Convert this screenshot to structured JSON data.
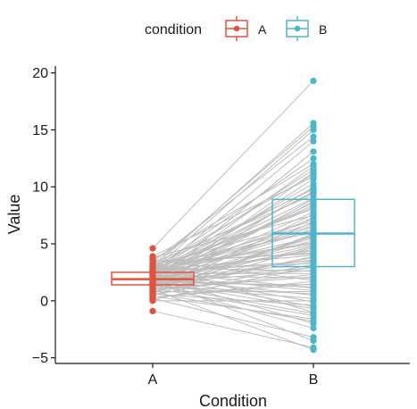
{
  "chart_data": {
    "type": "box",
    "xlabel": "Condition",
    "ylabel": "Value",
    "categories": [
      "A",
      "B"
    ],
    "ylim": [
      -5.5,
      20.6
    ],
    "yticks": [
      -5,
      0,
      5,
      10,
      15,
      20
    ],
    "ytick_labels": [
      "−5",
      "0",
      "5",
      "10",
      "15",
      "20"
    ],
    "legend": {
      "title": "condition",
      "position": "top",
      "items": [
        {
          "label": "A",
          "color": "#E0533F"
        },
        {
          "label": "B",
          "color": "#4FB6C8"
        }
      ]
    },
    "boxes": [
      {
        "group": "A",
        "q1": 1.4,
        "median": 1.9,
        "q3": 2.5,
        "min": 1.4,
        "max": 2.5,
        "color": "#E0533F"
      },
      {
        "group": "B",
        "q1": 3.0,
        "median": 5.9,
        "q3": 8.9,
        "min": 3.0,
        "max": 8.9,
        "color": "#4FB6C8"
      }
    ],
    "paired_points": [
      [
        4.6,
        19.3
      ],
      [
        2.9,
        15.6
      ],
      [
        3.1,
        15.3
      ],
      [
        2.7,
        15.0
      ],
      [
        3.4,
        14.4
      ],
      [
        3.6,
        12.0
      ],
      [
        2.5,
        11.5
      ],
      [
        2.9,
        11.1
      ],
      [
        1.6,
        10.7
      ],
      [
        2.2,
        10.3
      ],
      [
        2.6,
        9.9
      ],
      [
        1.9,
        9.6
      ],
      [
        3.3,
        9.3
      ],
      [
        2.2,
        9.0
      ],
      [
        1.3,
        8.7
      ],
      [
        2.0,
        8.4
      ],
      [
        2.7,
        8.1
      ],
      [
        1.5,
        7.8
      ],
      [
        3.8,
        7.5
      ],
      [
        2.1,
        7.2
      ],
      [
        1.1,
        6.9
      ],
      [
        2.4,
        6.6
      ],
      [
        1.7,
        6.3
      ],
      [
        3.0,
        6.0
      ],
      [
        0.9,
        5.8
      ],
      [
        2.3,
        5.6
      ],
      [
        1.4,
        5.3
      ],
      [
        2.8,
        5.0
      ],
      [
        0.7,
        4.7
      ],
      [
        1.9,
        4.4
      ],
      [
        3.5,
        4.1
      ],
      [
        1.2,
        3.8
      ],
      [
        2.5,
        3.5
      ],
      [
        0.5,
        3.2
      ],
      [
        1.8,
        2.9
      ],
      [
        2.9,
        2.6
      ],
      [
        1.0,
        2.3
      ],
      [
        2.2,
        2.0
      ],
      [
        0.3,
        1.7
      ],
      [
        1.6,
        1.4
      ],
      [
        2.6,
        1.1
      ],
      [
        0.8,
        0.8
      ],
      [
        2.0,
        0.5
      ],
      [
        1.3,
        0.2
      ],
      [
        2.4,
        -0.1
      ],
      [
        0.6,
        -0.4
      ],
      [
        1.7,
        -0.7
      ],
      [
        3.2,
        -1.0
      ],
      [
        1.1,
        -1.3
      ],
      [
        0.4,
        -1.6
      ],
      [
        2.1,
        -2.0
      ],
      [
        1.5,
        -2.4
      ],
      [
        0.2,
        -3.2
      ],
      [
        1.9,
        -3.5
      ],
      [
        -0.9,
        -4.1
      ],
      [
        1.0,
        -4.3
      ],
      [
        2.7,
        12.5
      ],
      [
        1.8,
        11.8
      ],
      [
        3.9,
        10.9
      ],
      [
        0.9,
        10.0
      ],
      [
        2.3,
        9.5
      ],
      [
        1.4,
        8.9
      ],
      [
        2.8,
        8.2
      ],
      [
        0.6,
        7.6
      ],
      [
        3.1,
        7.0
      ],
      [
        1.9,
        6.5
      ],
      [
        2.5,
        6.2
      ],
      [
        0.4,
        5.9
      ],
      [
        1.6,
        5.5
      ],
      [
        2.9,
        5.1
      ],
      [
        1.2,
        4.8
      ],
      [
        2.0,
        4.5
      ],
      [
        3.3,
        4.2
      ],
      [
        0.8,
        3.9
      ],
      [
        1.7,
        3.6
      ],
      [
        2.6,
        3.3
      ],
      [
        0.1,
        3.0
      ],
      [
        1.5,
        2.7
      ],
      [
        2.4,
        2.4
      ],
      [
        1.0,
        2.1
      ],
      [
        3.6,
        1.8
      ],
      [
        0.3,
        1.5
      ],
      [
        1.8,
        1.2
      ],
      [
        2.2,
        0.9
      ],
      [
        1.3,
        0.6
      ],
      [
        0.0,
        0.0
      ],
      [
        2.1,
        -0.5
      ],
      [
        1.4,
        -1.1
      ],
      [
        0.7,
        -1.8
      ],
      [
        1.6,
        13.1
      ],
      [
        2.3,
        14.0
      ],
      [
        1.1,
        11.3
      ],
      [
        3.0,
        9.8
      ],
      [
        2.0,
        8.6
      ],
      [
        1.2,
        7.3
      ],
      [
        2.6,
        6.8
      ],
      [
        0.9,
        5.7
      ],
      [
        1.9,
        4.9
      ],
      [
        2.7,
        4.0
      ],
      [
        1.5,
        3.4
      ]
    ]
  }
}
